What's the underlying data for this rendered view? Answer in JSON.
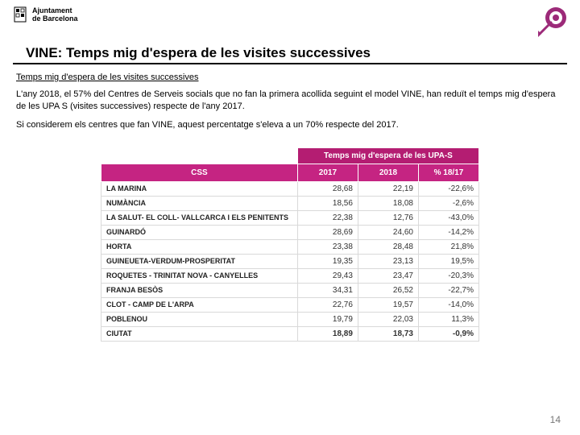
{
  "header": {
    "org_line1": "Ajuntament",
    "org_line2": "de Barcelona"
  },
  "title": "VINE: Temps mig d'espera de les visites successives",
  "subtitle": "Temps mig d'espera de les visites successives",
  "paragraph1": "L'any 2018, el 57% del Centres de Serveis socials que no fan la primera acollida seguint el model VINE, han reduït el temps mig d'espera de les UPA S (visites successives) respecte de l'any 2017.",
  "paragraph2": "Si considerem els centres que fan VINE, aquest percentatge s'eleva a un 70% respecte del 2017.",
  "table": {
    "super_header": "Temps mig d'espera de les UPA-S",
    "columns": {
      "css": "CSS",
      "y2017": "2017",
      "y2018": "2018",
      "pct": "% 18/17"
    },
    "rows": [
      {
        "label": "LA MARINA",
        "y2017": "28,68",
        "y2018": "22,19",
        "pct": "-22,6%"
      },
      {
        "label": "NUMÀNCIA",
        "y2017": "18,56",
        "y2018": "18,08",
        "pct": "-2,6%"
      },
      {
        "label": "LA SALUT- EL COLL- VALLCARCA I ELS PENITENTS",
        "y2017": "22,38",
        "y2018": "12,76",
        "pct": "-43,0%"
      },
      {
        "label": "GUINARDÓ",
        "y2017": "28,69",
        "y2018": "24,60",
        "pct": "-14,2%"
      },
      {
        "label": "HORTA",
        "y2017": "23,38",
        "y2018": "28,48",
        "pct": "21,8%"
      },
      {
        "label": "GUINEUETA-VERDUM-PROSPERITAT",
        "y2017": "19,35",
        "y2018": "23,13",
        "pct": "19,5%"
      },
      {
        "label": "ROQUETES - TRINITAT NOVA - CANYELLES",
        "y2017": "29,43",
        "y2018": "23,47",
        "pct": "-20,3%"
      },
      {
        "label": "FRANJA BESÒS",
        "y2017": "34,31",
        "y2018": "26,52",
        "pct": "-22,7%"
      },
      {
        "label": "CLOT - CAMP DE L'ARPA",
        "y2017": "22,76",
        "y2018": "19,57",
        "pct": "-14,0%"
      },
      {
        "label": "POBLENOU",
        "y2017": "19,79",
        "y2018": "22,03",
        "pct": "11,3%"
      }
    ],
    "total": {
      "label": "CIUTAT",
      "y2017": "18,89",
      "y2018": "18,73",
      "pct": "-0,9%"
    },
    "colors": {
      "super_header_bg": "#b41d72",
      "header_bg": "#c52482",
      "header_text": "#ffffff",
      "row_border": "#d9d9d9",
      "cell_text": "#333333"
    }
  },
  "page_number": "14",
  "corner_icon_color": "#9c2a79"
}
